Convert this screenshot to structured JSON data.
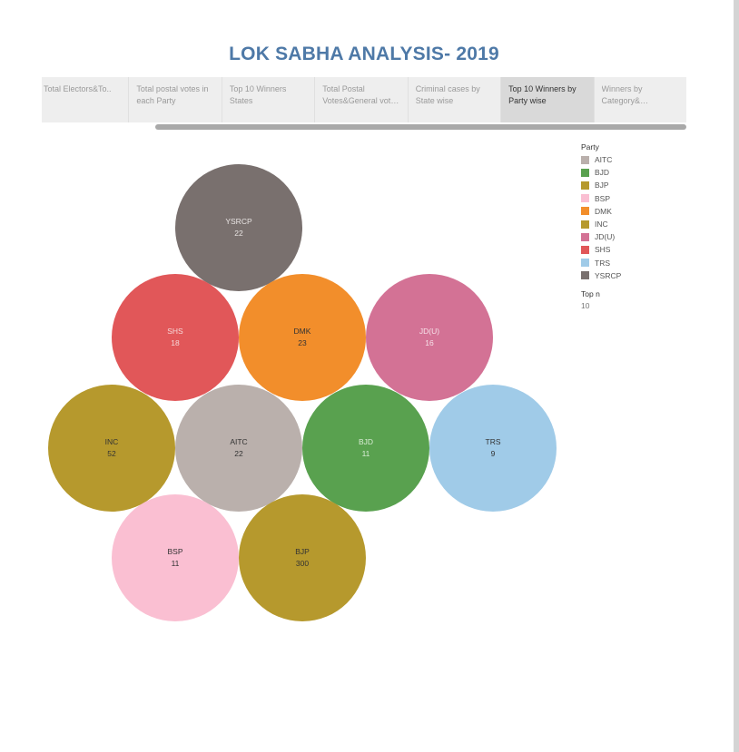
{
  "dashboard": {
    "title": "LOK SABHA ANALYSIS- 2019"
  },
  "tabs": [
    {
      "label": "Total Electors&To..",
      "active": false
    },
    {
      "label": "Total postal votes in each Party",
      "active": false
    },
    {
      "label": "Top 10 Winners States",
      "active": false
    },
    {
      "label": "Total Postal Votes&General votes ..",
      "active": false
    },
    {
      "label": "Criminal cases by State wise",
      "active": false
    },
    {
      "label": "Top 10 Winners by Party wise",
      "active": true
    },
    {
      "label": "Winners by Category& Educational..",
      "active": false
    }
  ],
  "chart_data": {
    "type": "packed-bubble",
    "series": [
      {
        "party": "YSRCP",
        "value": 22,
        "color": "#79706e",
        "label_color": "#e8e4e3"
      },
      {
        "party": "SHS",
        "value": 18,
        "color": "#e15759",
        "label_color": "#f6d9d9"
      },
      {
        "party": "DMK",
        "value": 23,
        "color": "#f28e2b",
        "label_color": "#333333"
      },
      {
        "party": "JD(U)",
        "value": 16,
        "color": "#d37295",
        "label_color": "#f7e3ea"
      },
      {
        "party": "INC",
        "value": 52,
        "color": "#b6992d",
        "label_color": "#333333"
      },
      {
        "party": "AITC",
        "value": 22,
        "color": "#bab0ac",
        "label_color": "#333333"
      },
      {
        "party": "BJD",
        "value": 11,
        "color": "#59a14f",
        "label_color": "#d9ecd5"
      },
      {
        "party": "TRS",
        "value": 9,
        "color": "#a0cbe8",
        "label_color": "#333333"
      },
      {
        "party": "BSP",
        "value": 11,
        "color": "#fabfd2",
        "label_color": "#333333"
      },
      {
        "party": "BJP",
        "value": 300,
        "color": "#b6992d",
        "label_color": "#333333"
      }
    ]
  },
  "legend": {
    "title": "Party",
    "items": [
      {
        "label": "AITC",
        "color": "#bab0ac"
      },
      {
        "label": "BJD",
        "color": "#59a14f"
      },
      {
        "label": "BJP",
        "color": "#b6992d"
      },
      {
        "label": "BSP",
        "color": "#fabfd2"
      },
      {
        "label": "DMK",
        "color": "#f28e2b"
      },
      {
        "label": "INC",
        "color": "#b6992d"
      },
      {
        "label": "JD(U)",
        "color": "#d37295"
      },
      {
        "label": "SHS",
        "color": "#e15759"
      },
      {
        "label": "TRS",
        "color": "#a0cbe8"
      },
      {
        "label": "YSRCP",
        "color": "#79706e"
      }
    ]
  },
  "filter": {
    "title": "Top n",
    "value": "10"
  }
}
